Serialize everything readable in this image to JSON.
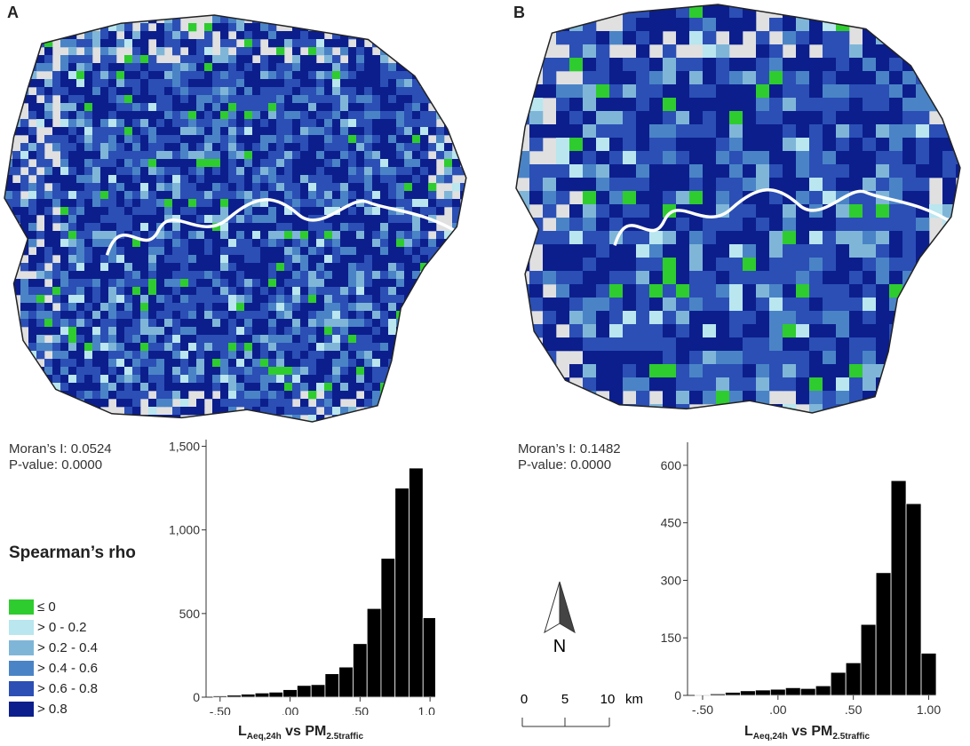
{
  "panels": [
    {
      "letter": "A",
      "morans": "Moran’s I: 0.0524",
      "pvalue": "P-value: 0.0000"
    },
    {
      "letter": "B",
      "morans": "Moran’s I: 0.1482",
      "pvalue": "P-value: 0.0000"
    }
  ],
  "legend": {
    "title": "Spearman’s rho",
    "items": [
      {
        "label": "≤ 0",
        "color": "#2ecc2e"
      },
      {
        "label": "> 0 - 0.2",
        "color": "#b9e6ef"
      },
      {
        "label": "> 0.2 - 0.4",
        "color": "#7fb6d8"
      },
      {
        "label": "> 0.4 - 0.6",
        "color": "#4a84c6"
      },
      {
        "label": "> 0.6 - 0.8",
        "color": "#2b4fb5"
      },
      {
        "label": "> 0.8",
        "color": "#0c1e8c"
      }
    ]
  },
  "map_colors": {
    "background": "#e0e0e0",
    "river": "#ffffff",
    "outline": "#222222"
  },
  "north_arrow": {
    "label": "N"
  },
  "scale_bar": {
    "ticks": [
      "0",
      "5",
      "10"
    ],
    "unit": "km"
  },
  "xlabel": {
    "l_main": "L",
    "l_sub": "Aeq,24h",
    "mid": " vs PM",
    "pm_sub": "2.5traffic"
  },
  "chart_data": [
    {
      "type": "bar",
      "title": "",
      "xlabel": "LAeq,24h vs PM2.5traffic",
      "ylabel": "",
      "x_ticks": [
        "-.50",
        ".00",
        ".50",
        "1.00"
      ],
      "x_tick_values": [
        -0.5,
        0.0,
        0.5,
        1.0
      ],
      "y_ticks": [
        "0",
        "500",
        "1,000",
        "1,500"
      ],
      "y_tick_values": [
        0,
        500,
        1000,
        1500
      ],
      "ylim": [
        0,
        1540
      ],
      "xlim": [
        -0.6,
        1.05
      ],
      "bin_width": 0.1,
      "bin_starts": [
        -0.55,
        -0.45,
        -0.35,
        -0.25,
        -0.15,
        -0.05,
        0.05,
        0.15,
        0.25,
        0.35,
        0.45,
        0.55,
        0.65,
        0.75,
        0.85,
        0.95
      ],
      "values": [
        8,
        12,
        18,
        25,
        30,
        45,
        70,
        75,
        140,
        180,
        320,
        530,
        830,
        1250,
        1370,
        475
      ]
    },
    {
      "type": "bar",
      "title": "",
      "xlabel": "LAeq,24h vs PM2.5traffic",
      "ylabel": "",
      "x_ticks": [
        "-.50",
        ".00",
        ".50",
        "1.00"
      ],
      "x_tick_values": [
        -0.5,
        0.0,
        0.5,
        1.0
      ],
      "y_ticks": [
        "0",
        "150",
        "300",
        "450",
        "600"
      ],
      "y_tick_values": [
        0,
        150,
        300,
        450,
        600
      ],
      "ylim": [
        0,
        660
      ],
      "xlim": [
        -0.6,
        1.05
      ],
      "bin_width": 0.1,
      "bin_starts": [
        -0.55,
        -0.45,
        -0.35,
        -0.25,
        -0.15,
        -0.05,
        0.05,
        0.15,
        0.25,
        0.35,
        0.45,
        0.55,
        0.65,
        0.75,
        0.85,
        0.95
      ],
      "values": [
        2,
        4,
        8,
        12,
        14,
        16,
        20,
        18,
        25,
        60,
        85,
        185,
        320,
        560,
        500,
        110
      ]
    }
  ]
}
